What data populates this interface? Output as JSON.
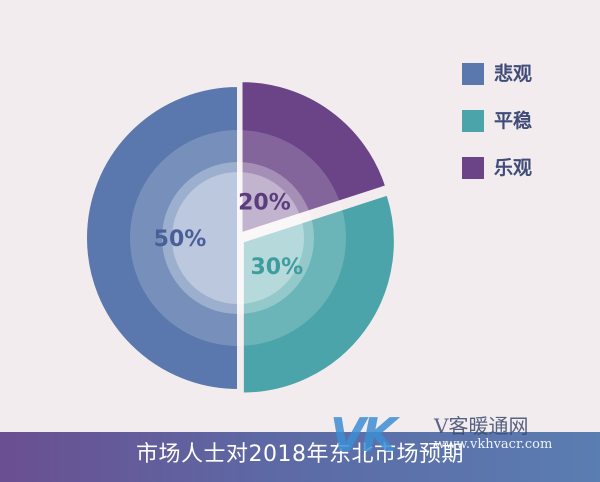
{
  "chart_data": {
    "type": "pie",
    "categories": [
      "悲观",
      "平稳",
      "乐观"
    ],
    "values": [
      50,
      30,
      20
    ],
    "value_labels": [
      "50%",
      "30%",
      "20%"
    ],
    "colors": [
      "#5a78ad",
      "#4ba4a9",
      "#6a4486"
    ],
    "label_colors": [
      "#4a5f98",
      "#3e9c9e",
      "#5b3d7d"
    ],
    "legend_position": "top-right",
    "title": "市场人士对2018年东北市场预期"
  },
  "legend": {
    "items": [
      {
        "label": "悲观",
        "color": "#5a78ad"
      },
      {
        "label": "平稳",
        "color": "#4ba4a9"
      },
      {
        "label": "乐观",
        "color": "#6a4486"
      }
    ]
  },
  "caption": {
    "text": "市场人士对2018年东北市场预期"
  },
  "watermark": {
    "mark": "VK",
    "name": "V客暖通网",
    "url": "www.vkhvacr.com"
  }
}
